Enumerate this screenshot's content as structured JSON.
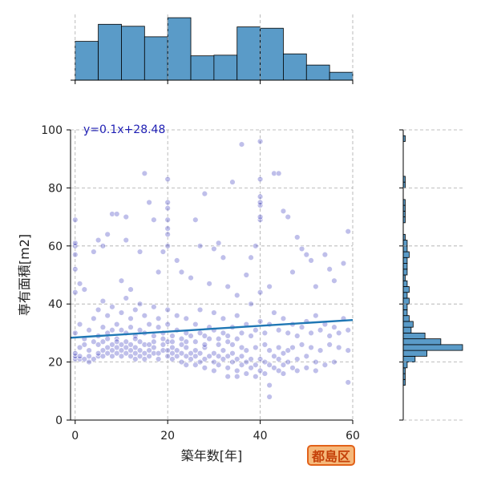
{
  "chart_data": {
    "type": "scatter",
    "xlabel": "築年数[年]",
    "ylabel": "専有面積[m2]",
    "xlim": [
      -1,
      60
    ],
    "ylim": [
      0,
      100
    ],
    "xticks": [
      0,
      20,
      40,
      60
    ],
    "yticks": [
      0,
      20,
      40,
      60,
      80,
      100
    ],
    "grid": true,
    "colors": {
      "points": "#1a1ab4",
      "regression": "#1f77b4",
      "histogram": "#5a9bc8",
      "badge_bg": "#f5b87a",
      "badge_border": "#e2621a",
      "badge_text": "#c5410a"
    },
    "regression": {
      "label": "y=0.1x+28.48",
      "slope": 0.1,
      "intercept": 28.48
    },
    "ward": "都島区",
    "x_histogram": {
      "bin_edges": [
        0,
        5,
        10,
        15,
        20,
        25,
        30,
        35,
        40,
        45,
        50,
        55,
        60
      ],
      "relative_heights": [
        0.59,
        0.85,
        0.82,
        0.66,
        0.95,
        0.37,
        0.38,
        0.81,
        0.79,
        0.4,
        0.23,
        0.12
      ]
    },
    "y_histogram": {
      "bin_edges": [
        0,
        2,
        4,
        6,
        8,
        10,
        12,
        14,
        16,
        18,
        20,
        22,
        24,
        26,
        28,
        30,
        32,
        34,
        36,
        38,
        40,
        42,
        44,
        46,
        48,
        50,
        52,
        54,
        56,
        58,
        60,
        62,
        64,
        66,
        68,
        70,
        72,
        74,
        76,
        78,
        80,
        82,
        84,
        86,
        88,
        90,
        92,
        94,
        96,
        98,
        100
      ],
      "counts": [
        0,
        0,
        0,
        0,
        0,
        0,
        1,
        1,
        1,
        2,
        6,
        12,
        30,
        19,
        11,
        4,
        5,
        3,
        2,
        2,
        3,
        2,
        3,
        2,
        1,
        2,
        2,
        2,
        3,
        2,
        2,
        1,
        0,
        0,
        1,
        1,
        1,
        1,
        0,
        0,
        1,
        1,
        0,
        0,
        0,
        0,
        0,
        0,
        1,
        0
      ]
    },
    "points": [
      [
        0,
        21
      ],
      [
        0,
        22
      ],
      [
        0,
        23
      ],
      [
        1,
        21
      ],
      [
        1,
        22
      ],
      [
        2,
        21
      ],
      [
        3,
        20
      ],
      [
        3,
        22
      ],
      [
        4,
        21
      ],
      [
        5,
        22
      ],
      [
        5,
        23
      ],
      [
        6,
        22
      ],
      [
        6,
        24
      ],
      [
        7,
        23
      ],
      [
        7,
        25
      ],
      [
        8,
        22
      ],
      [
        8,
        24
      ],
      [
        8,
        26
      ],
      [
        9,
        23
      ],
      [
        9,
        25
      ],
      [
        10,
        22
      ],
      [
        10,
        24
      ],
      [
        10,
        26
      ],
      [
        11,
        23
      ],
      [
        11,
        25
      ],
      [
        12,
        22
      ],
      [
        12,
        24
      ],
      [
        12,
        26
      ],
      [
        13,
        21
      ],
      [
        13,
        23
      ],
      [
        13,
        25
      ],
      [
        14,
        22
      ],
      [
        14,
        24
      ],
      [
        15,
        21
      ],
      [
        15,
        23
      ],
      [
        15,
        26
      ],
      [
        16,
        22
      ],
      [
        16,
        24
      ],
      [
        17,
        23
      ],
      [
        17,
        25
      ],
      [
        18,
        21
      ],
      [
        18,
        23
      ],
      [
        19,
        24
      ],
      [
        19,
        26
      ],
      [
        20,
        22
      ],
      [
        20,
        24
      ],
      [
        20,
        27
      ],
      [
        21,
        21
      ],
      [
        21,
        23
      ],
      [
        21,
        25
      ],
      [
        22,
        22
      ],
      [
        22,
        24
      ],
      [
        23,
        20
      ],
      [
        23,
        23
      ],
      [
        24,
        22
      ],
      [
        24,
        25
      ],
      [
        25,
        21
      ],
      [
        25,
        23
      ],
      [
        26,
        22
      ],
      [
        26,
        24
      ],
      [
        27,
        20
      ],
      [
        27,
        23
      ],
      [
        28,
        21
      ],
      [
        28,
        25
      ],
      [
        29,
        22
      ],
      [
        30,
        20
      ],
      [
        30,
        23
      ],
      [
        31,
        19
      ],
      [
        31,
        22
      ],
      [
        32,
        21
      ],
      [
        32,
        24
      ],
      [
        33,
        18
      ],
      [
        33,
        22
      ],
      [
        34,
        20
      ],
      [
        34,
        23
      ],
      [
        35,
        17
      ],
      [
        35,
        21
      ],
      [
        36,
        19
      ],
      [
        36,
        22
      ],
      [
        37,
        16
      ],
      [
        37,
        20
      ],
      [
        38,
        18
      ],
      [
        38,
        21
      ],
      [
        39,
        15
      ],
      [
        39,
        19
      ],
      [
        40,
        17
      ],
      [
        40,
        21
      ],
      [
        41,
        16
      ],
      [
        41,
        20
      ],
      [
        42,
        8
      ],
      [
        42,
        12
      ],
      [
        42,
        19
      ],
      [
        43,
        18
      ],
      [
        43,
        22
      ],
      [
        44,
        17
      ],
      [
        44,
        21
      ],
      [
        45,
        19
      ],
      [
        45,
        23
      ],
      [
        46,
        20
      ],
      [
        47,
        18
      ],
      [
        48,
        21
      ],
      [
        50,
        22
      ],
      [
        52,
        20
      ],
      [
        0,
        30
      ],
      [
        1,
        33
      ],
      [
        2,
        28
      ],
      [
        3,
        31
      ],
      [
        4,
        35
      ],
      [
        5,
        29
      ],
      [
        5,
        38
      ],
      [
        6,
        32
      ],
      [
        6,
        41
      ],
      [
        7,
        30
      ],
      [
        7,
        36
      ],
      [
        8,
        31
      ],
      [
        8,
        39
      ],
      [
        9,
        28
      ],
      [
        9,
        33
      ],
      [
        10,
        31
      ],
      [
        10,
        37
      ],
      [
        11,
        30
      ],
      [
        11,
        42
      ],
      [
        12,
        32
      ],
      [
        12,
        35
      ],
      [
        13,
        29
      ],
      [
        13,
        38
      ],
      [
        14,
        31
      ],
      [
        14,
        40
      ],
      [
        15,
        30
      ],
      [
        15,
        36
      ],
      [
        16,
        33
      ],
      [
        17,
        29
      ],
      [
        17,
        39
      ],
      [
        18,
        32
      ],
      [
        18,
        35
      ],
      [
        19,
        30
      ],
      [
        20,
        33
      ],
      [
        20,
        38
      ],
      [
        21,
        29
      ],
      [
        22,
        31
      ],
      [
        22,
        36
      ],
      [
        23,
        28
      ],
      [
        24,
        30
      ],
      [
        24,
        35
      ],
      [
        25,
        29
      ],
      [
        26,
        33
      ],
      [
        27,
        30
      ],
      [
        27,
        38
      ],
      [
        28,
        29
      ],
      [
        29,
        32
      ],
      [
        30,
        31
      ],
      [
        30,
        37
      ],
      [
        31,
        28
      ],
      [
        32,
        30
      ],
      [
        32,
        35
      ],
      [
        33,
        29
      ],
      [
        34,
        32
      ],
      [
        35,
        28
      ],
      [
        35,
        36
      ],
      [
        36,
        30
      ],
      [
        37,
        33
      ],
      [
        38,
        29
      ],
      [
        38,
        40
      ],
      [
        39,
        31
      ],
      [
        40,
        34
      ],
      [
        40,
        44
      ],
      [
        41,
        30
      ],
      [
        42,
        33
      ],
      [
        43,
        37
      ],
      [
        44,
        31
      ],
      [
        45,
        35
      ],
      [
        46,
        30
      ],
      [
        47,
        33
      ],
      [
        48,
        29
      ],
      [
        49,
        32
      ],
      [
        50,
        34
      ],
      [
        51,
        30
      ],
      [
        52,
        36
      ],
      [
        53,
        31
      ],
      [
        54,
        33
      ],
      [
        55,
        29
      ],
      [
        56,
        32
      ],
      [
        57,
        30
      ],
      [
        58,
        35
      ],
      [
        59,
        31
      ],
      [
        0,
        44
      ],
      [
        0,
        52
      ],
      [
        0,
        57
      ],
      [
        0,
        60
      ],
      [
        0,
        61
      ],
      [
        0,
        69
      ],
      [
        1,
        47
      ],
      [
        2,
        45
      ],
      [
        4,
        58
      ],
      [
        5,
        62
      ],
      [
        6,
        60
      ],
      [
        7,
        64
      ],
      [
        8,
        71
      ],
      [
        9,
        71
      ],
      [
        10,
        48
      ],
      [
        11,
        62
      ],
      [
        11,
        70
      ],
      [
        12,
        45
      ],
      [
        14,
        58
      ],
      [
        15,
        85
      ],
      [
        16,
        75
      ],
      [
        17,
        69
      ],
      [
        18,
        51
      ],
      [
        19,
        58
      ],
      [
        20,
        60
      ],
      [
        20,
        64
      ],
      [
        20,
        66
      ],
      [
        20,
        69
      ],
      [
        20,
        73
      ],
      [
        20,
        75
      ],
      [
        20,
        83
      ],
      [
        22,
        55
      ],
      [
        23,
        51
      ],
      [
        25,
        49
      ],
      [
        26,
        69
      ],
      [
        27,
        60
      ],
      [
        28,
        78
      ],
      [
        29,
        47
      ],
      [
        30,
        59
      ],
      [
        31,
        61
      ],
      [
        32,
        56
      ],
      [
        33,
        46
      ],
      [
        34,
        82
      ],
      [
        35,
        43
      ],
      [
        36,
        95
      ],
      [
        37,
        50
      ],
      [
        38,
        56
      ],
      [
        39,
        60
      ],
      [
        40,
        69
      ],
      [
        40,
        70
      ],
      [
        40,
        74
      ],
      [
        40,
        75
      ],
      [
        40,
        77
      ],
      [
        40,
        83
      ],
      [
        40,
        96
      ],
      [
        42,
        46
      ],
      [
        43,
        85
      ],
      [
        44,
        85
      ],
      [
        45,
        72
      ],
      [
        46,
        70
      ],
      [
        47,
        51
      ],
      [
        48,
        63
      ],
      [
        49,
        59
      ],
      [
        50,
        57
      ],
      [
        51,
        55
      ],
      [
        52,
        46
      ],
      [
        54,
        57
      ],
      [
        55,
        52
      ],
      [
        56,
        48
      ],
      [
        58,
        54
      ],
      [
        59,
        65
      ],
      [
        1,
        25
      ],
      [
        2,
        26
      ],
      [
        3,
        24
      ],
      [
        4,
        27
      ],
      [
        5,
        26
      ],
      [
        6,
        27
      ],
      [
        7,
        28
      ],
      [
        9,
        27
      ],
      [
        11,
        27
      ],
      [
        13,
        28
      ],
      [
        14,
        27
      ],
      [
        16,
        26
      ],
      [
        17,
        27
      ],
      [
        19,
        28
      ],
      [
        21,
        27
      ],
      [
        23,
        26
      ],
      [
        24,
        27
      ],
      [
        26,
        27
      ],
      [
        28,
        26
      ],
      [
        29,
        28
      ],
      [
        31,
        26
      ],
      [
        33,
        27
      ],
      [
        34,
        26
      ],
      [
        36,
        25
      ],
      [
        37,
        24
      ],
      [
        39,
        25
      ],
      [
        41,
        26
      ],
      [
        42,
        24
      ],
      [
        44,
        25
      ],
      [
        46,
        24
      ],
      [
        47,
        25
      ],
      [
        49,
        26
      ],
      [
        51,
        25
      ],
      [
        53,
        24
      ],
      [
        55,
        26
      ],
      [
        57,
        25
      ],
      [
        59,
        24
      ],
      [
        59,
        13
      ],
      [
        35,
        15
      ],
      [
        33,
        15
      ],
      [
        30,
        17
      ],
      [
        28,
        18
      ],
      [
        26,
        19
      ],
      [
        24,
        19
      ],
      [
        45,
        16
      ],
      [
        48,
        17
      ],
      [
        50,
        18
      ],
      [
        52,
        17
      ],
      [
        54,
        19
      ],
      [
        56,
        20
      ]
    ]
  }
}
